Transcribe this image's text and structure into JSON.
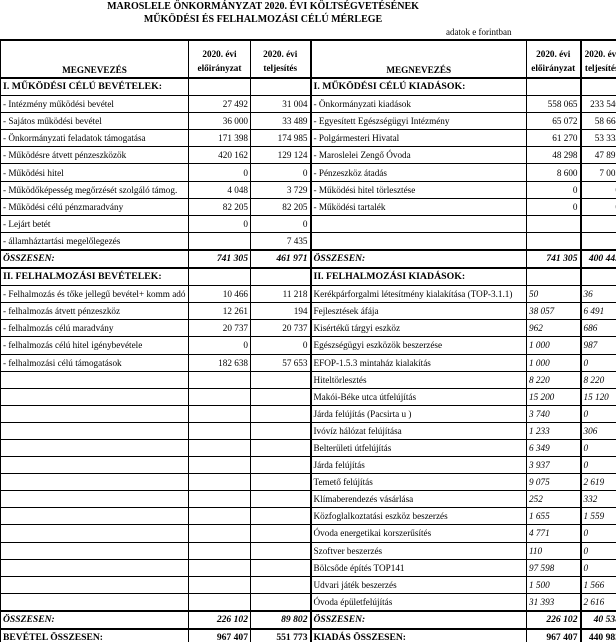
{
  "title": "MAROSLELE ÖNKORMÁNYZAT 2020. ÉVI KÖLTSÉGVETÉSÉNEK",
  "subtitle": "MŰKÖDÉSI ÉS FELHALMOZÁSI CÉLÚ MÉRLEGE",
  "unit": "adatok e  forintban",
  "header": {
    "name": "MEGNEVEZÉS",
    "col_a": [
      "2020. évi",
      "előirányzat"
    ],
    "col_b": [
      "2020. évi",
      "teljesítés"
    ]
  },
  "rows": [
    {
      "type": "section",
      "l": [
        "I. MŰKÖDÉSI CÉLÚ BEVÉTELEK:",
        "",
        ""
      ],
      "r": [
        "I. MŰKÖDÉSI CÉLÚ KIADÁSOK:",
        "",
        ""
      ]
    },
    {
      "type": "item",
      "l": [
        "- Intézmény működési bevétel",
        "27 492",
        "31 004"
      ],
      "r": [
        "- Önkormányzati kiadások",
        "558 065",
        "233 546"
      ]
    },
    {
      "type": "item",
      "l": [
        "- Sajátos működési bevétel",
        "36 000",
        "33 489"
      ],
      "r": [
        "- Egyesített Egészségügyi Intézmény",
        "65 072",
        "58 664"
      ]
    },
    {
      "type": "item",
      "l": [
        "- Önkormányzati feladatok támogatása",
        "171 398",
        "174 985"
      ],
      "r": [
        "- Polgármesteri Hivatal",
        "61 270",
        "53 333"
      ]
    },
    {
      "type": "item",
      "l": [
        "- Működésre átvett pénzeszközök",
        "420 162",
        "129 124"
      ],
      "r": [
        "- Maroslelei Zengő Óvoda",
        "48 298",
        "47 897"
      ]
    },
    {
      "type": "item",
      "l": [
        "- Működési hitel",
        "0",
        "0"
      ],
      "r": [
        "- Pénzeszköz átadás",
        "8 600",
        "7 005"
      ]
    },
    {
      "type": "item",
      "l": [
        "- Működőképesség megőrzését szolgáló támog.",
        "4 048",
        "3 729"
      ],
      "r": [
        "- Működési hitel törlesztése",
        "0",
        "0"
      ]
    },
    {
      "type": "item",
      "l": [
        "- Működési célú pénzmaradvány",
        "82 205",
        "82 205"
      ],
      "r": [
        "- Működési tartalék",
        "0",
        "0"
      ]
    },
    {
      "type": "item",
      "l": [
        "- Lejárt betét",
        "0",
        "0"
      ],
      "r": [
        "",
        "",
        ""
      ]
    },
    {
      "type": "item",
      "l": [
        "-  államháztartási megelőlegezés",
        "",
        "7 435"
      ],
      "r": [
        "",
        "",
        ""
      ]
    },
    {
      "type": "sum",
      "l": [
        "ÖSSZESEN:",
        "741 305",
        "461 971"
      ],
      "r": [
        "ÖSSZESEN:",
        "741 305",
        "400 445"
      ]
    },
    {
      "type": "section",
      "l": [
        "II. FELHALMOZÁSI BEVÉTELEK:",
        "",
        ""
      ],
      "r": [
        "II. FELHALMOZÁSI KIADÁSOK:",
        "",
        ""
      ]
    },
    {
      "type": "item",
      "ri": true,
      "l": [
        "- Felhalmozás és tőke jellegű bevétel+ komm adó",
        "10 466",
        "11 218"
      ],
      "r": [
        "Kerékpárforgalmi létesítmény kialakítása (TOP-3.1.1)",
        "50",
        "36"
      ]
    },
    {
      "type": "item",
      "ri": true,
      "l": [
        "- felhalmozás átvett pénzeszköz",
        "12 261",
        "194"
      ],
      "r": [
        "Fejlesztések áfája",
        "38 057",
        "6 491"
      ]
    },
    {
      "type": "item",
      "ri": true,
      "l": [
        "- felhalmozás célú maradvány",
        "20 737",
        "20 737"
      ],
      "r": [
        "Kisértékű tárgyi eszköz",
        "962",
        "686"
      ]
    },
    {
      "type": "item",
      "ri": true,
      "l": [
        "- felhalmozás célú hitel igénybevétele",
        "0",
        "0"
      ],
      "r": [
        "Egészségügyi eszközök beszerzése",
        "1 000",
        "987"
      ]
    },
    {
      "type": "item",
      "ri": true,
      "l": [
        "- felhalmozási célú támogatások",
        "182 638",
        "57 653"
      ],
      "r": [
        "EFOP-1.5.3  mintaház kialakítás",
        "1 000",
        "0"
      ]
    },
    {
      "type": "item",
      "ri": true,
      "l": [
        "",
        "",
        ""
      ],
      "r": [
        "Hiteltörlesztés",
        "8 220",
        "8 220"
      ]
    },
    {
      "type": "item",
      "ri": true,
      "l": [
        "",
        "",
        ""
      ],
      "r": [
        "Makói-Béke utca útfelújítás",
        "15 200",
        "15 120"
      ]
    },
    {
      "type": "item",
      "ri": true,
      "l": [
        "",
        "",
        ""
      ],
      "r": [
        "Járda felújítás (Pacsirta u )",
        "3 740",
        "0"
      ]
    },
    {
      "type": "item",
      "ri": true,
      "l": [
        "",
        "",
        ""
      ],
      "r": [
        "Ivóvíz hálózat felújítása",
        "1 233",
        "306"
      ]
    },
    {
      "type": "item",
      "ri": true,
      "l": [
        "",
        "",
        ""
      ],
      "r": [
        "Belterületi útfelújítás",
        "6 349",
        "0"
      ]
    },
    {
      "type": "item",
      "ri": true,
      "l": [
        "",
        "",
        ""
      ],
      "r": [
        "Járda felújítás",
        "3 937",
        "0"
      ]
    },
    {
      "type": "item",
      "ri": true,
      "l": [
        "",
        "",
        ""
      ],
      "r": [
        "Temető felújítás",
        "9 075",
        "2 619"
      ]
    },
    {
      "type": "item",
      "ri": true,
      "l": [
        "",
        "",
        ""
      ],
      "r": [
        "Klímaberendezés vásárlása",
        "252",
        "332"
      ]
    },
    {
      "type": "item",
      "ri": true,
      "l": [
        "",
        "",
        ""
      ],
      "r": [
        "Közfoglalkoztatási eszköz beszerzés",
        "1 655",
        "1 559"
      ]
    },
    {
      "type": "item",
      "ri": true,
      "l": [
        "",
        "",
        ""
      ],
      "r": [
        "Óvoda energetikai korszerűsítés",
        "4 771",
        "0"
      ]
    },
    {
      "type": "item",
      "ri": true,
      "l": [
        "",
        "",
        ""
      ],
      "r": [
        "Szoftver beszerzés",
        "110",
        "0"
      ]
    },
    {
      "type": "item",
      "ri": true,
      "l": [
        "",
        "",
        ""
      ],
      "r": [
        "Bölcsőde építés TOP141",
        "97 598",
        "0"
      ]
    },
    {
      "type": "item",
      "ri": true,
      "l": [
        "",
        "",
        ""
      ],
      "r": [
        "Udvari játék beszerzés",
        "1 500",
        "1 566"
      ]
    },
    {
      "type": "item",
      "ri": true,
      "l": [
        "",
        "",
        ""
      ],
      "r": [
        "Óvoda épületfelújítás",
        "31 393",
        "2 616"
      ]
    },
    {
      "type": "sum",
      "l": [
        "ÖSSZESEN:",
        "226 102",
        "89 802"
      ],
      "r": [
        "ÖSSZESEN:",
        "226 102",
        "40 538"
      ]
    },
    {
      "type": "total",
      "l": [
        "BEVÉTEL ÖSSZESEN:",
        "967 407",
        "551 773"
      ],
      "r": [
        "KIADÁS ÖSSZESEN:",
        "967 407",
        "440 983"
      ]
    }
  ]
}
